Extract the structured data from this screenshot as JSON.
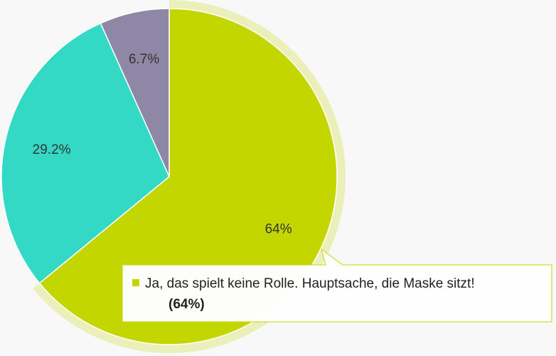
{
  "chart_data": {
    "type": "pie",
    "slices": [
      {
        "label": "Ja, das spielt keine Rolle. Hauptsache, die Maske sitzt!",
        "value": 64,
        "display": "64%",
        "color": "#c3d600"
      },
      {
        "display": "29.2%",
        "value": 29.2,
        "color": "#33d9c5"
      },
      {
        "display": "6.7%",
        "value": 6.7,
        "color": "#8e88a6"
      }
    ],
    "highlighted_index": 0,
    "tooltip": {
      "label": "Ja, das spielt keine Rolle. Hauptsache, die Maske sitzt!",
      "value_text": "(64%)",
      "marker_color": "#c3d600"
    }
  }
}
